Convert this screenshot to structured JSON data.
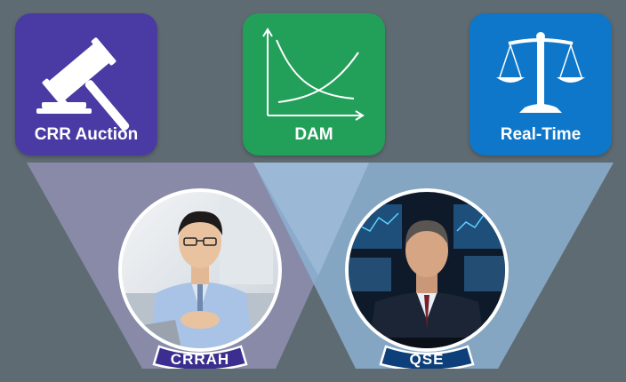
{
  "tiles": [
    {
      "id": "crr",
      "label": "CRR Auction",
      "icon": "gavel-icon",
      "color": "#4a3aa4"
    },
    {
      "id": "dam",
      "label": "DAM",
      "icon": "supply-demand-curve-icon",
      "color": "#22a05a"
    },
    {
      "id": "rt",
      "label": "Real-Time",
      "icon": "balance-scale-icon",
      "color": "#0f77c9"
    }
  ],
  "participants": [
    {
      "id": "crrah",
      "label": "CRRAH",
      "ribbon_color": "#3a2f8f"
    },
    {
      "id": "qse",
      "label": "QSE",
      "ribbon_color": "#0d3f7a"
    }
  ],
  "colors": {
    "background": "#5f6b72",
    "funnel_left": "#8f93b3",
    "funnel_right": "#8eaecb"
  }
}
